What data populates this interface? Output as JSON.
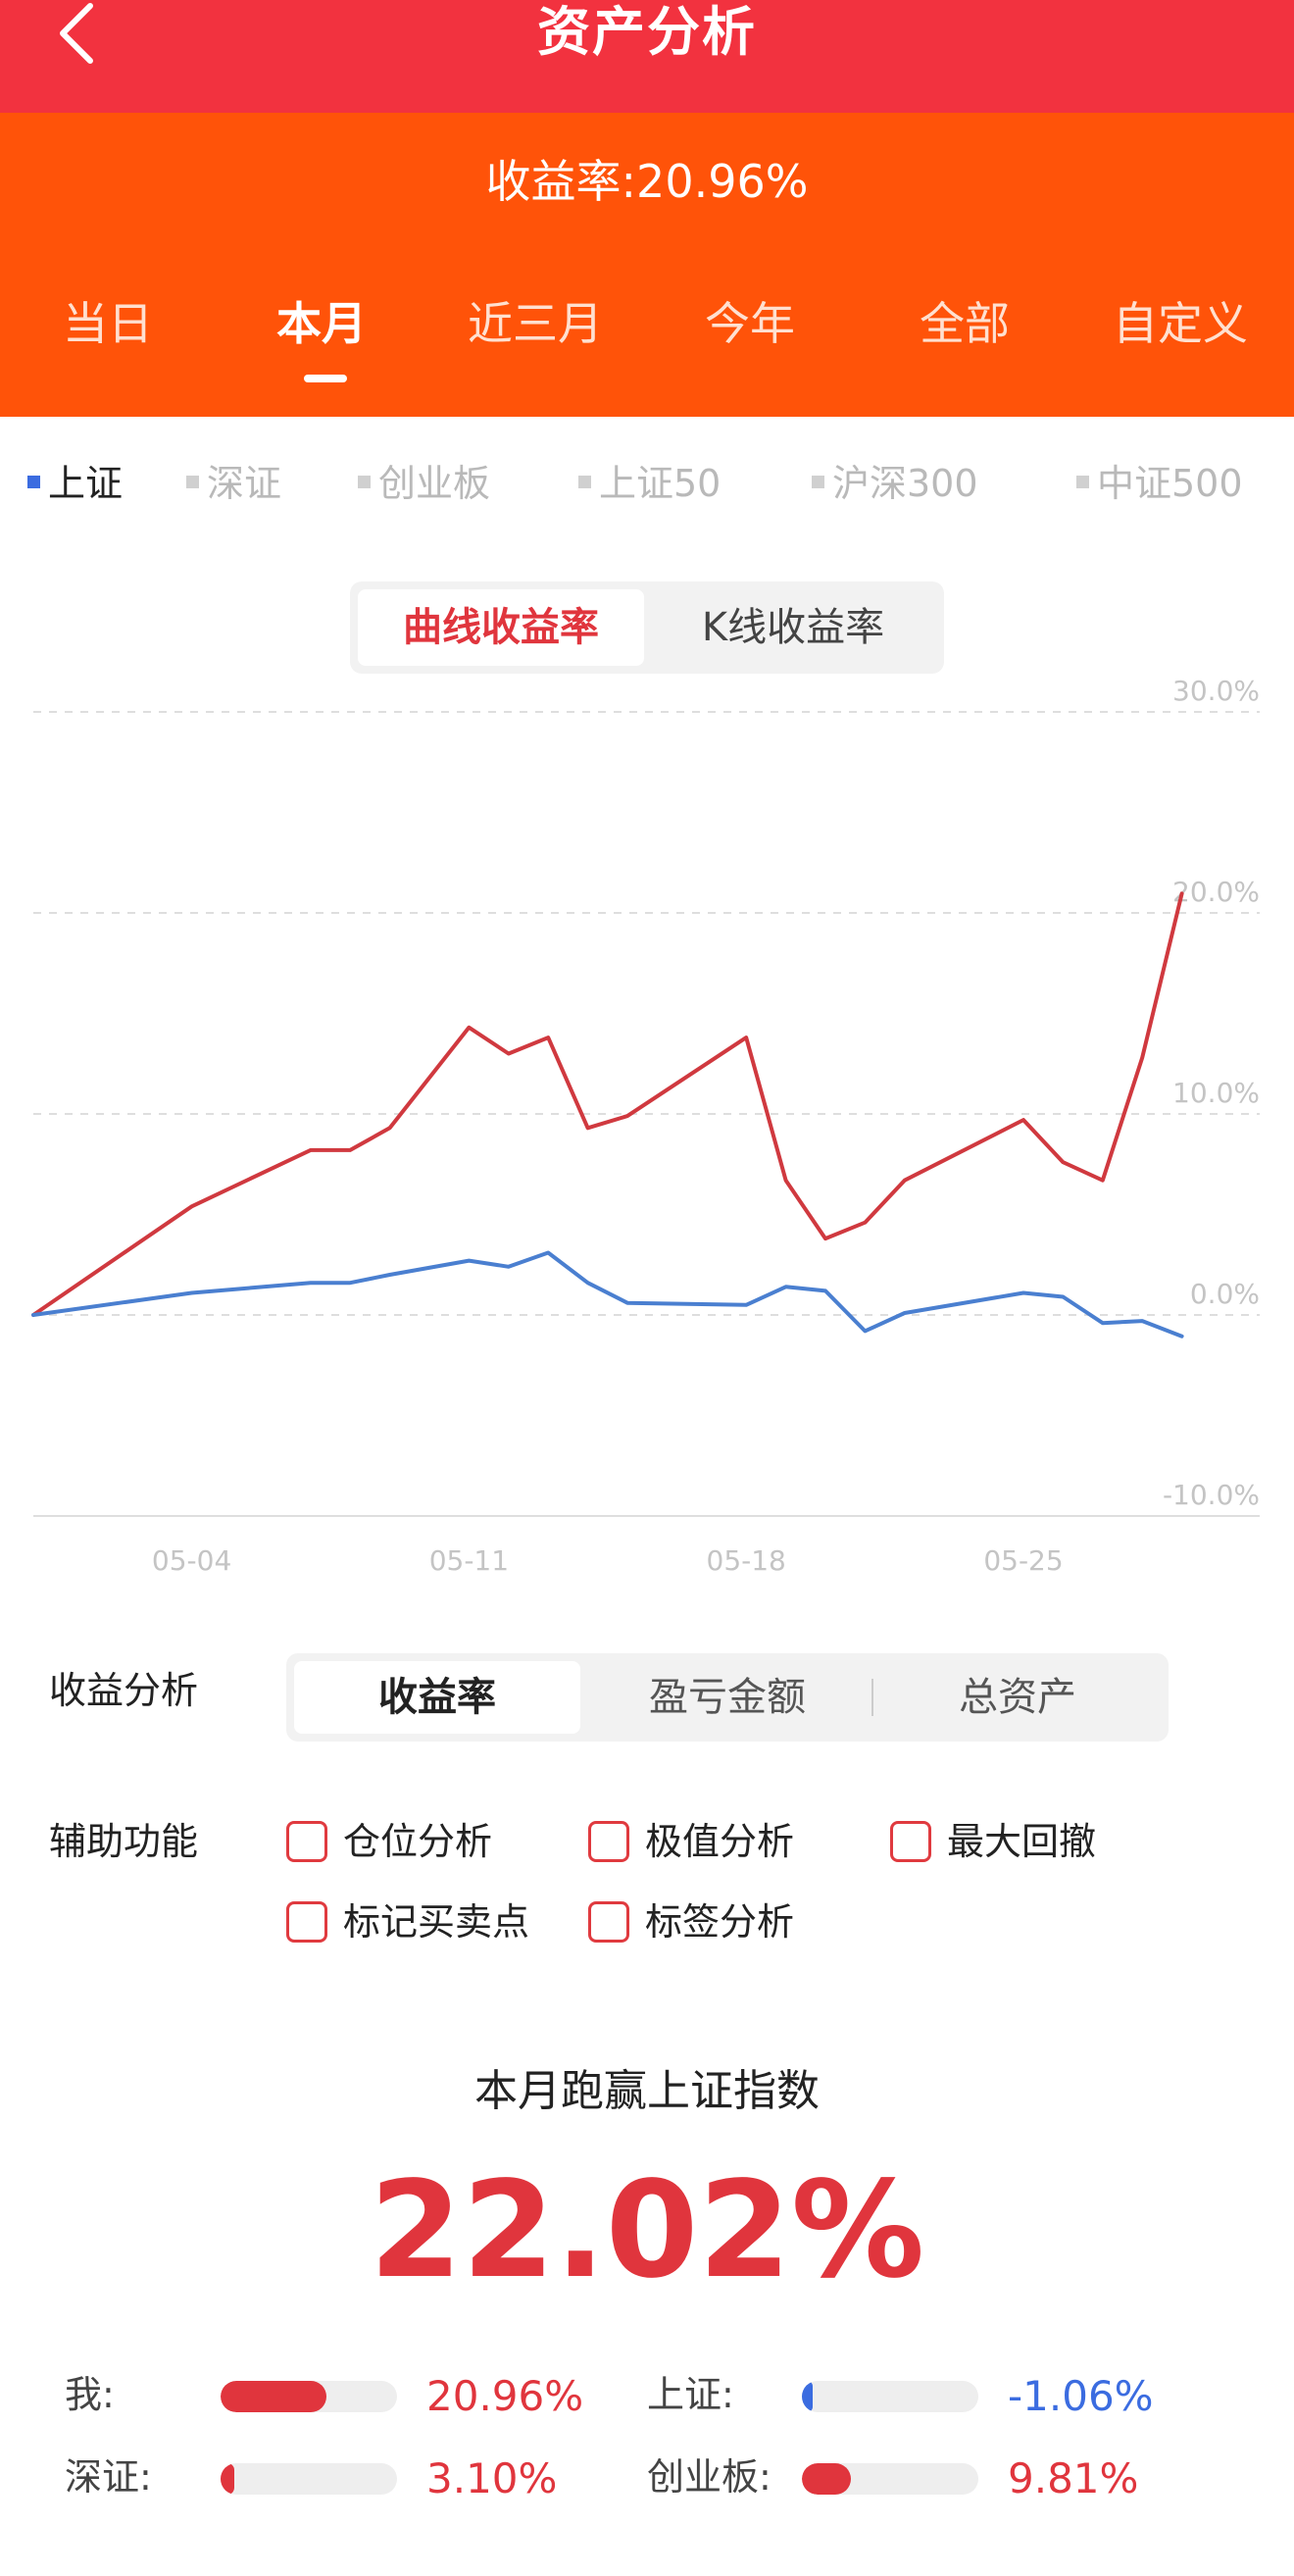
{
  "header": {
    "title": "资产分析"
  },
  "summary": {
    "yield_label": "收益率:",
    "yield_value": "20.96%"
  },
  "tabs": [
    {
      "label": "当日"
    },
    {
      "label": "本月"
    },
    {
      "label": "近三月"
    },
    {
      "label": "今年"
    },
    {
      "label": "全部"
    },
    {
      "label": "自定义"
    }
  ],
  "active_tab": "本月",
  "indices": [
    {
      "label": "上证"
    },
    {
      "label": "深证"
    },
    {
      "label": "创业板"
    },
    {
      "label": "上证50"
    },
    {
      "label": "沪深300"
    },
    {
      "label": "中证500"
    }
  ],
  "active_index": "上证",
  "chart_mode": {
    "curve_label": "曲线收益率",
    "k_label": "K线收益率"
  },
  "colors": {
    "header_red": "#f2323f",
    "orange": "#ff5309",
    "my_line": "#d0393f",
    "index_line": "#4a7fd0",
    "positive": "#e0353d",
    "negative": "#3b6ce0"
  },
  "chart_data": {
    "type": "line",
    "x": [
      "2024-04-30",
      "2024-05-04",
      "2024-05-07",
      "2024-05-08",
      "2024-05-09",
      "2024-05-11",
      "2024-05-12",
      "2024-05-13",
      "2024-05-14",
      "2024-05-15",
      "2024-05-18",
      "2024-05-19",
      "2024-05-20",
      "2024-05-21",
      "2024-05-22",
      "2024-05-25",
      "2024-05-26",
      "2024-05-27",
      "2024-05-28",
      "2024-05-29"
    ],
    "x_ticks": [
      "05-04",
      "05-11",
      "05-18",
      "05-25"
    ],
    "y_ticks": [
      "30.0%",
      "20.0%",
      "10.0%",
      "0.0%",
      "-10.0%"
    ],
    "ylim": [
      -10,
      30
    ],
    "grid": true,
    "series": [
      {
        "values": [
          0,
          5.4,
          8.2,
          8.2,
          9.3,
          14.3,
          13.0,
          13.8,
          9.3,
          9.9,
          13.8,
          6.7,
          3.8,
          4.6,
          6.7,
          9.7,
          7.6,
          6.7,
          12.8,
          20.96
        ]
      },
      {
        "values": [
          0,
          1.1,
          1.6,
          1.6,
          2.0,
          2.7,
          2.4,
          3.1,
          1.6,
          0.6,
          0.5,
          1.4,
          1.2,
          -0.8,
          0.1,
          1.1,
          0.9,
          -0.4,
          -0.3,
          -1.06
        ]
      }
    ]
  },
  "analysis": {
    "label": "收益分析",
    "options": [
      {
        "label": "收益率"
      },
      {
        "label": "盈亏金额"
      },
      {
        "label": "总资产"
      }
    ],
    "active": "收益率"
  },
  "aux": {
    "label": "辅助功能",
    "options": [
      {
        "label": "仓位分析"
      },
      {
        "label": "极值分析"
      },
      {
        "label": "最大回撤"
      },
      {
        "label": "标记买卖点"
      },
      {
        "label": "标签分析"
      }
    ]
  },
  "beat": {
    "title": "本月跑赢上证指数",
    "value": "22.02%"
  },
  "comparison": [
    {
      "label": "我:",
      "value": "20.96%",
      "fraction": 0.6,
      "color": "#e0353d"
    },
    {
      "label": "上证:",
      "value": "-1.06%",
      "fraction": 0.03,
      "color": "#3b6ce0"
    },
    {
      "label": "深证:",
      "value": "3.10%",
      "fraction": 0.08,
      "color": "#e0353d"
    },
    {
      "label": "创业板:",
      "value": "9.81%",
      "fraction": 0.28,
      "color": "#e0353d"
    }
  ]
}
